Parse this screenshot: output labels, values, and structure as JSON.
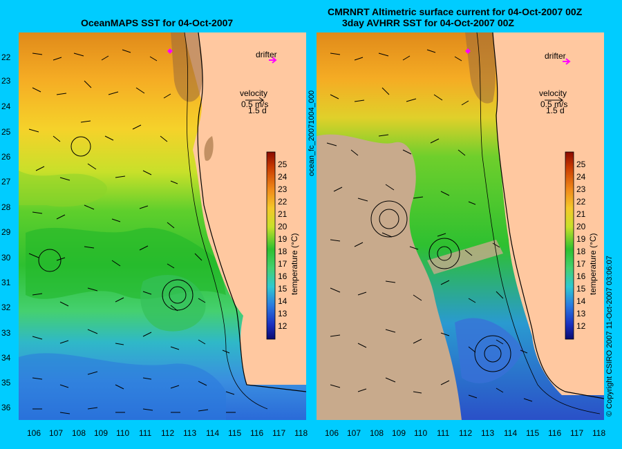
{
  "titles": {
    "left": "OceanMAPS SST for 04-Oct-2007",
    "right_line1": "CMRNRT Altimetric surface current for 04-Oct-2007 00Z",
    "right_line2": "3day AVHRR SST for 04-Oct-2007 00Z"
  },
  "axes": {
    "lon_ticks": [
      "106",
      "107",
      "108",
      "109",
      "110",
      "111",
      "112",
      "113",
      "114",
      "115",
      "116",
      "117",
      "118"
    ],
    "lat_ticks": [
      "22",
      "23",
      "24",
      "25",
      "26",
      "27",
      "28",
      "29",
      "30",
      "31",
      "32",
      "33",
      "34",
      "35",
      "36"
    ]
  },
  "legend": {
    "drifter": "drifter",
    "velocity": "velocity",
    "speed": "0.5 m/s",
    "duration": "1.5 d"
  },
  "colorbar": {
    "ticks": [
      "25",
      "24",
      "23",
      "22",
      "21",
      "20",
      "19",
      "18",
      "17",
      "16",
      "15",
      "14",
      "13",
      "12"
    ],
    "label": "temperature (°C)"
  },
  "side_text": {
    "file_id": "ocean_fc_20071004_000",
    "copyright": "© Copyright CSIRO 2007   11-Oct-2007 03:06:07"
  },
  "colors": {
    "background": "#00ccff",
    "land": "#ffc8a0",
    "land_missing": "#c8aa8c",
    "drifter_marker": "#ff00ff"
  }
}
